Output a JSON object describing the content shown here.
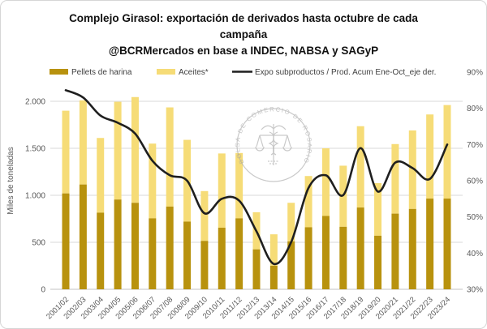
{
  "title": {
    "line1": "Complejo Girasol: exportación de derivados hasta octubre de cada",
    "line2": "campaña",
    "line3": "@BCRMercados en base a INDEC, NABSA y SAGyP"
  },
  "legend": {
    "items": [
      {
        "label": "Pellets de harina",
        "swatch": "bar",
        "color": "#B8920E"
      },
      {
        "label": "Aceites*",
        "swatch": "bar",
        "color": "#F6DC77"
      },
      {
        "label": "Expo subproductos / Prod. Acum Ene-Oct_eje der.",
        "swatch": "line",
        "color": "#1f1f1f"
      }
    ]
  },
  "watermark": {
    "text": "BOLSA DE COMERCIO DE ROSARIO"
  },
  "colors": {
    "pellets": "#B8920E",
    "aceites": "#F6DC77",
    "line": "#1f1f1f",
    "gridline": "#d9d9d9",
    "axis_line": "#c3c3c3"
  },
  "chart_data": {
    "type": "bar",
    "subtype": "stacked-bars-with-line",
    "title": "Complejo Girasol: exportación de derivados hasta octubre de cada campaña",
    "source_note": "@BCRMercados en base a INDEC, NABSA y SAGyP",
    "categories": [
      "2001/02",
      "2002/03",
      "2003/04",
      "2004/05",
      "2005/06",
      "2006/07",
      "2007/08",
      "2008/09",
      "2009/10",
      "2010/11",
      "2011/12",
      "2012/13",
      "2013/14",
      "2014/15",
      "2015/16",
      "2016/17",
      "2017/18",
      "2018/19",
      "2019/20",
      "2020/21",
      "2021/22",
      "2022/23",
      "2023/24"
    ],
    "series": [
      {
        "name": "Pellets de harina",
        "type": "bar",
        "stack": "total",
        "axis": "left",
        "values": [
          1020,
          1115,
          815,
          955,
          920,
          755,
          880,
          720,
          515,
          655,
          755,
          425,
          250,
          510,
          660,
          780,
          665,
          870,
          570,
          805,
          855,
          965,
          965
        ]
      },
      {
        "name": "Aceites*",
        "type": "bar",
        "stack": "total",
        "axis": "left",
        "values": [
          880,
          895,
          795,
          1040,
          1125,
          795,
          1055,
          870,
          530,
          790,
          695,
          395,
          335,
          410,
          545,
          720,
          650,
          865,
          560,
          740,
          835,
          895,
          995
        ]
      },
      {
        "name": "Expo subproductos / Prod. Acum Ene-Oct_eje der.",
        "type": "line",
        "axis": "right",
        "values": [
          85,
          83,
          78,
          76,
          73,
          65.5,
          61.5,
          60,
          51,
          55,
          54.5,
          46,
          37,
          43,
          58,
          61.5,
          56,
          69,
          57,
          65,
          63.5,
          60.5,
          70
        ]
      }
    ],
    "left_axis": {
      "label": "Miles de toneladas",
      "tick_labels": [
        "0",
        "500",
        "1.000",
        "1.500",
        "2.000"
      ],
      "tick_values": [
        0,
        500,
        1000,
        1500,
        2000
      ],
      "min": 0,
      "max": 2000,
      "grid": true
    },
    "right_axis": {
      "tick_labels": [
        "30%",
        "40%",
        "50%",
        "60%",
        "70%",
        "80%",
        "90%"
      ],
      "tick_values": [
        30,
        40,
        50,
        60,
        70,
        80,
        90
      ],
      "min": 30,
      "max": 90,
      "grid": false
    },
    "legend_position": "top"
  }
}
